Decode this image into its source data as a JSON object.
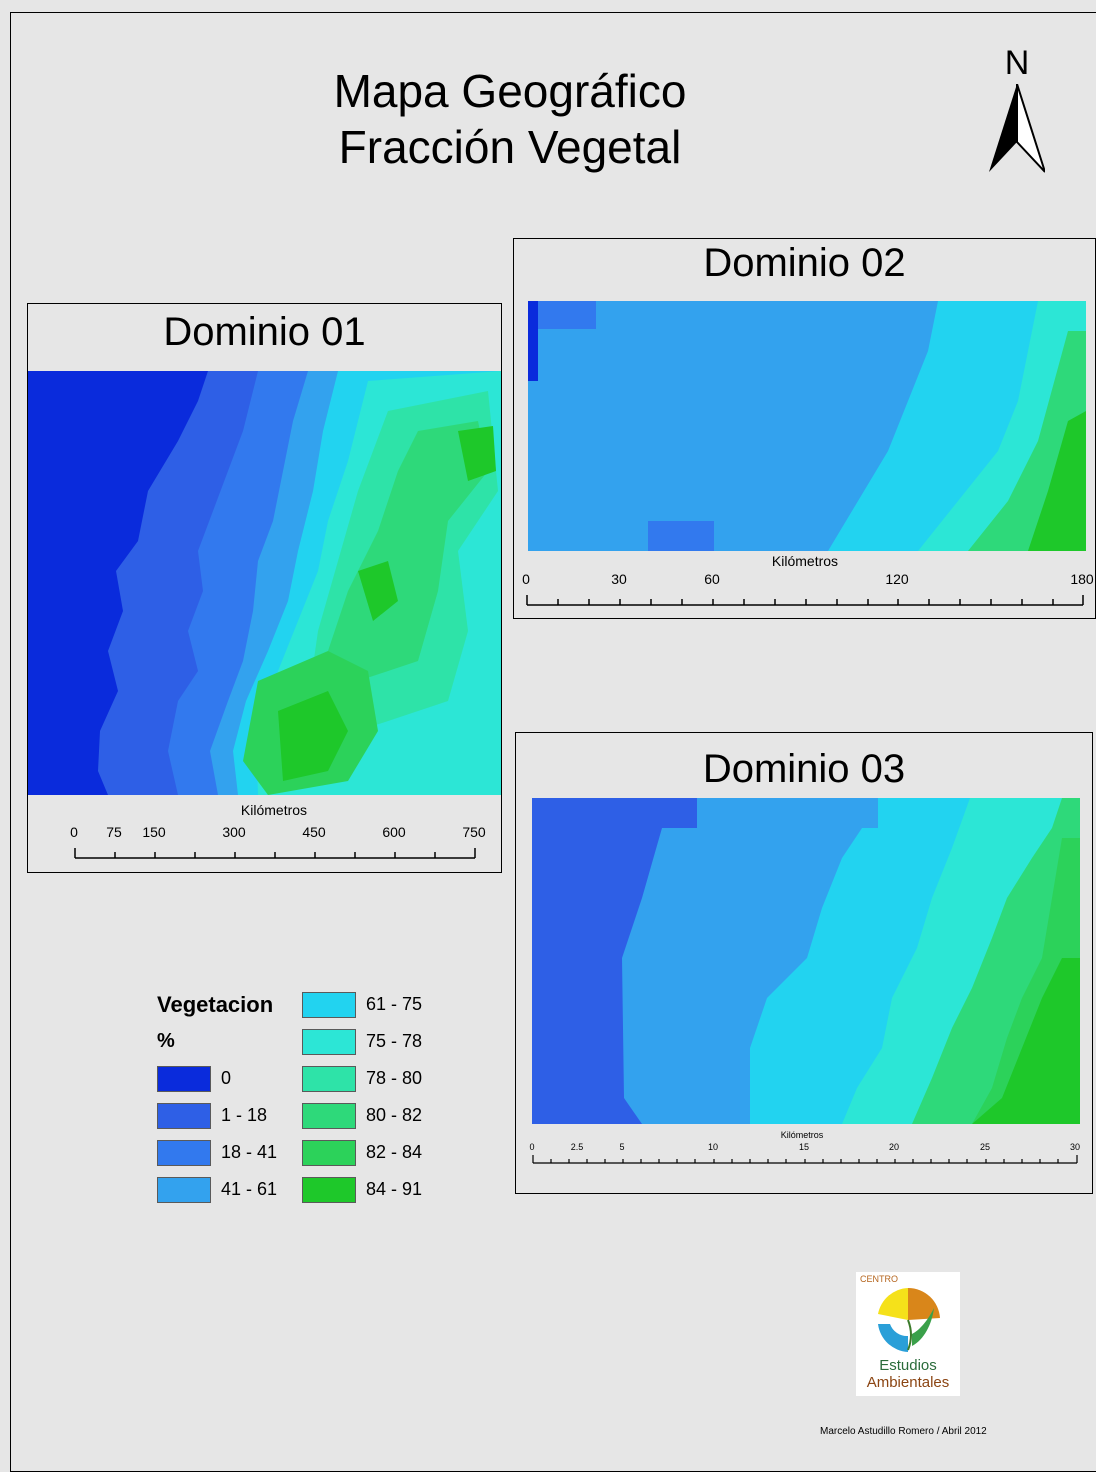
{
  "title": {
    "line1": "Mapa Geográfico",
    "line2": "Fracción Vegetal"
  },
  "north_arrow": {
    "label": "N"
  },
  "panels": [
    {
      "title": "Dominio 01",
      "scale_unit": "Kilómetros",
      "scale_ticks": [
        "0",
        "75",
        "150",
        "300",
        "450",
        "600",
        "750"
      ]
    },
    {
      "title": "Dominio 02",
      "scale_unit": "Kilómetros",
      "scale_ticks": [
        "0",
        "30",
        "60",
        "120",
        "180"
      ]
    },
    {
      "title": "Dominio 03",
      "scale_unit": "Kilómetros",
      "scale_ticks": [
        "0",
        "2.5",
        "5",
        "10",
        "15",
        "20",
        "25",
        "30"
      ]
    }
  ],
  "legend": {
    "title": "Vegetacion",
    "unit": "%",
    "classes": [
      {
        "label": "0",
        "color": "#0a2bdc"
      },
      {
        "label": "1 - 18",
        "color": "#2e5fe6"
      },
      {
        "label": "18 - 41",
        "color": "#3279ee"
      },
      {
        "label": "41 - 61",
        "color": "#33a2ee"
      },
      {
        "label": "61 - 75",
        "color": "#22d3f0"
      },
      {
        "label": "75 - 78",
        "color": "#2ce6d6"
      },
      {
        "label": "78 - 80",
        "color": "#2ee3a8"
      },
      {
        "label": "80 - 82",
        "color": "#2ed97a"
      },
      {
        "label": "82 - 84",
        "color": "#2cd25a"
      },
      {
        "label": "84 - 91",
        "color": "#1ec82a"
      }
    ]
  },
  "logo": {
    "line1": "CENTRO",
    "line2": "Estudios",
    "line3": "Ambientales"
  },
  "credit": "Marcelo Astudillo Romero / Abril 2012"
}
